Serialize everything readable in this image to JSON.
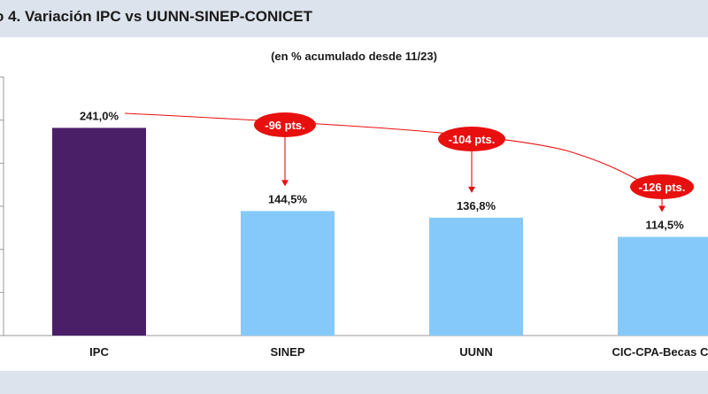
{
  "header": {
    "title": "o 4. Variación IPC vs UUNN-SINEP-CONICET"
  },
  "colors": {
    "ipc_bar": "#4a1f68",
    "other_bar": "#85c9fa",
    "annotation": "#e8100f",
    "header_bg": "#dde3ec"
  },
  "chart_data": {
    "type": "bar",
    "subtitle": "(en % acumulado desde 11/23)",
    "categories": [
      "IPC",
      "SINEP",
      "UUNN",
      "CIC-CPA-Becas CO"
    ],
    "values": [
      241.0,
      144.5,
      136.8,
      114.5
    ],
    "value_labels": [
      "241,0%",
      "144,5%",
      "136,8%",
      "114,5%"
    ],
    "ylim": [
      0,
      300
    ],
    "grid": false,
    "annotations": [
      {
        "target": "SINEP",
        "label": "-96 pts."
      },
      {
        "target": "UUNN",
        "label": "-104 pts."
      },
      {
        "target": "CIC-CPA-Becas CO",
        "label": "-126 pts."
      }
    ]
  }
}
